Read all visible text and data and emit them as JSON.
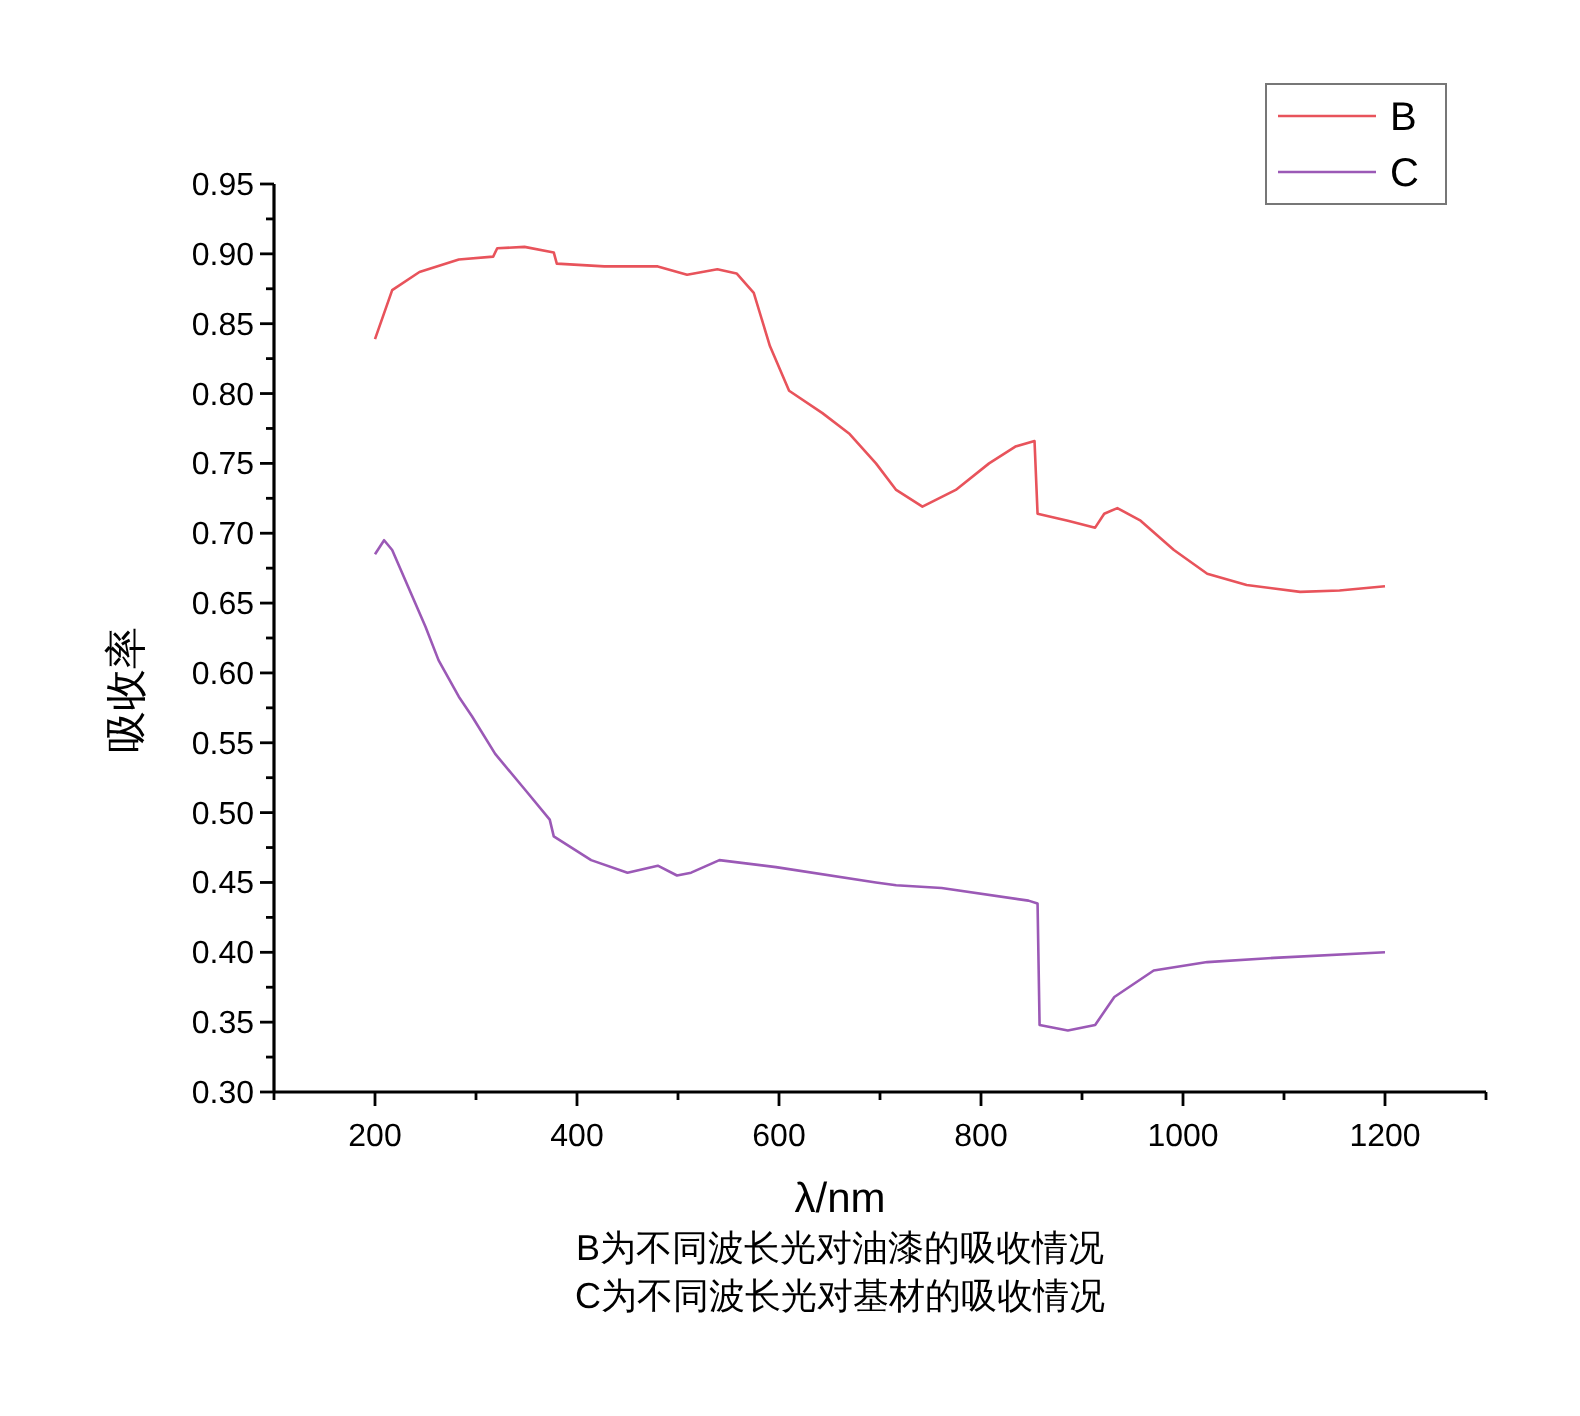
{
  "chart_data": {
    "type": "line",
    "xlabel": "λ/nm",
    "ylabel": "吸收率",
    "annotations": [
      "B为不同波长光对油漆的吸收情况",
      "C为不同波长光对基材的吸收情况"
    ],
    "xlim": [
      100,
      1300
    ],
    "xticks": [
      {
        "value": 100,
        "label": null
      },
      200,
      {
        "value": 300,
        "label": null
      },
      400,
      {
        "value": 500,
        "label": null
      },
      600,
      {
        "value": 700,
        "label": null
      },
      800,
      {
        "value": 900,
        "label": null
      },
      1000,
      {
        "value": 1100,
        "label": null
      },
      1200,
      {
        "value": 1300,
        "label": null
      }
    ],
    "ylim": [
      0.3,
      0.95
    ],
    "yticks": [
      {
        "value": 0.3,
        "label": "0.30"
      },
      {
        "value": 0.325,
        "label": null
      },
      0.35,
      {
        "value": 0.375,
        "label": null
      },
      {
        "value": 0.4,
        "label": "0.40"
      },
      {
        "value": 0.425,
        "label": null
      },
      0.45,
      {
        "value": 0.475,
        "label": null
      },
      {
        "value": 0.5,
        "label": "0.50"
      },
      {
        "value": 0.525,
        "label": null
      },
      0.55,
      {
        "value": 0.575,
        "label": null
      },
      {
        "value": 0.6,
        "label": "0.60"
      },
      {
        "value": 0.625,
        "label": null
      },
      0.65,
      {
        "value": 0.675,
        "label": null
      },
      {
        "value": 0.7,
        "label": "0.70"
      },
      {
        "value": 0.725,
        "label": null
      },
      0.75,
      {
        "value": 0.775,
        "label": null
      },
      {
        "value": 0.8,
        "label": "0.80"
      },
      {
        "value": 0.825,
        "label": null
      },
      0.85,
      {
        "value": 0.875,
        "label": null
      },
      {
        "value": 0.9,
        "label": "0.90"
      },
      {
        "value": 0.925,
        "label": null
      },
      0.95
    ],
    "grid": false,
    "legend": "top right",
    "marker": "none",
    "line_style": "solid",
    "series": [
      {
        "name": "B",
        "color": "#e8535b",
        "x": [
          200,
          217,
          244,
          283,
          317,
          321,
          348,
          377,
          380,
          427,
          480,
          509,
          539,
          558,
          575,
          591,
          610,
          643,
          670,
          696,
          716,
          742,
          775,
          808,
          834,
          853,
          856,
          886,
          913,
          922,
          935,
          958,
          991,
          1024,
          1063,
          1116,
          1155,
          1200
        ],
        "values": [
          0.839,
          0.874,
          0.887,
          0.896,
          0.898,
          0.904,
          0.905,
          0.901,
          0.893,
          0.891,
          0.891,
          0.885,
          0.889,
          0.886,
          0.872,
          0.834,
          0.802,
          0.786,
          0.771,
          0.75,
          0.731,
          0.719,
          0.731,
          0.75,
          0.762,
          0.766,
          0.714,
          0.709,
          0.704,
          0.714,
          0.718,
          0.709,
          0.688,
          0.671,
          0.663,
          0.658,
          0.659,
          0.662
        ]
      },
      {
        "name": "C",
        "color": "#9b59b6",
        "x": [
          200,
          209,
          217,
          250,
          263,
          283,
          296,
          319,
          349,
          373,
          377,
          414,
          450,
          480,
          499,
          513,
          541,
          597,
          696,
          716,
          761,
          847,
          856,
          858,
          886,
          913,
          932,
          971,
          1024,
          1090,
          1200
        ],
        "values": [
          0.685,
          0.695,
          0.688,
          0.633,
          0.609,
          0.583,
          0.569,
          0.542,
          0.516,
          0.495,
          0.483,
          0.466,
          0.457,
          0.462,
          0.455,
          0.457,
          0.466,
          0.461,
          0.45,
          0.448,
          0.446,
          0.437,
          0.435,
          0.348,
          0.344,
          0.348,
          0.368,
          0.387,
          0.393,
          0.396,
          0.4
        ]
      }
    ]
  }
}
